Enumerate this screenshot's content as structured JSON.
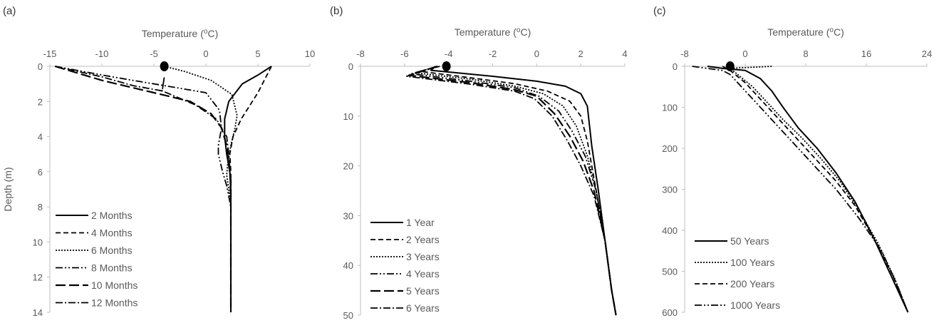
{
  "figure": {
    "panels": [
      "(a)",
      "(b)",
      "(c)"
    ]
  },
  "chart_data": [
    {
      "type": "line",
      "panel": "(a)",
      "xlabel": "Temperature (oC)",
      "xlabel_parts": [
        "Temperature (",
        "o",
        "C)"
      ],
      "ylabel": "Depth (m)",
      "xlim": [
        -15,
        10
      ],
      "ylim": [
        0,
        14
      ],
      "x_ticks": [
        -15,
        -10,
        -5,
        0,
        5,
        10
      ],
      "y_ticks": [
        0,
        2,
        4,
        6,
        8,
        10,
        12,
        14
      ],
      "y_inverted": true,
      "x_axis_position": "top",
      "grid": false,
      "legend_position": "bottom-left",
      "marker": {
        "x": -4,
        "y": 0
      },
      "series": [
        {
          "name": "2 Months",
          "style": "solid",
          "points": [
            [
              6.3,
              0
            ],
            [
              5,
              0.5
            ],
            [
              3.5,
              1
            ],
            [
              2.2,
              2
            ],
            [
              1.8,
              3
            ],
            [
              1.8,
              4
            ],
            [
              2,
              5
            ],
            [
              2.3,
              6
            ],
            [
              2.4,
              7
            ],
            [
              2.4,
              8
            ],
            [
              2.4,
              10
            ],
            [
              2.4,
              12
            ],
            [
              2.4,
              14
            ]
          ]
        },
        {
          "name": "4 Months",
          "style": "dashed",
          "points": [
            [
              6.3,
              0
            ],
            [
              5,
              1.5
            ],
            [
              3.4,
              3
            ],
            [
              2.6,
              4
            ],
            [
              2.3,
              5
            ],
            [
              2.4,
              6
            ],
            [
              2.4,
              7
            ],
            [
              2.4,
              8
            ],
            [
              2.4,
              10
            ],
            [
              2.4,
              12
            ],
            [
              2.4,
              14
            ]
          ]
        },
        {
          "name": "6 Months",
          "style": "dotted",
          "points": [
            [
              -4,
              0
            ],
            [
              -2,
              0.3
            ],
            [
              0.5,
              0.8
            ],
            [
              2.5,
              1.6
            ],
            [
              3,
              2.8
            ],
            [
              2.8,
              3.5
            ],
            [
              2.4,
              4.5
            ],
            [
              2.1,
              5.5
            ],
            [
              2,
              6.2
            ],
            [
              2.2,
              7
            ],
            [
              2.4,
              8
            ],
            [
              2.4,
              10
            ],
            [
              2.4,
              12
            ],
            [
              2.4,
              14
            ]
          ]
        },
        {
          "name": "8 Months",
          "style": "dashdotdot",
          "points": [
            [
              -14.5,
              0
            ],
            [
              -9,
              0.6
            ],
            [
              -4,
              1.1
            ],
            [
              0,
              1.5
            ],
            [
              1.3,
              2.5
            ],
            [
              1.5,
              3.5
            ],
            [
              1.2,
              4.5
            ],
            [
              1.2,
              5
            ],
            [
              1.6,
              6
            ],
            [
              2,
              6.8
            ],
            [
              2.4,
              8
            ],
            [
              2.4,
              10
            ],
            [
              2.4,
              12
            ],
            [
              2.4,
              14
            ]
          ]
        },
        {
          "name": "10 Months",
          "style": "longdash",
          "points": [
            [
              -14.5,
              0
            ],
            [
              -10,
              0.8
            ],
            [
              -5,
              1.5
            ],
            [
              -1.5,
              2
            ],
            [
              0.5,
              2.7
            ],
            [
              1.5,
              3.5
            ],
            [
              2,
              4.5
            ],
            [
              2.2,
              5.5
            ],
            [
              2.4,
              6.5
            ],
            [
              2.4,
              8
            ],
            [
              2.4,
              10
            ],
            [
              2.4,
              12
            ],
            [
              2.4,
              14
            ]
          ]
        },
        {
          "name": "12 Months",
          "style": "dashdot",
          "points": [
            [
              -14.5,
              0
            ],
            [
              -10,
              0.6
            ],
            [
              -7,
              1.1
            ],
            [
              -4.2,
              1.4
            ],
            [
              -4,
              0.6
            ],
            [
              -4.2,
              1.4
            ],
            [
              -1,
              2.2
            ],
            [
              1,
              3
            ],
            [
              2,
              4
            ],
            [
              2.2,
              5
            ],
            [
              2.3,
              6
            ],
            [
              2.4,
              8
            ],
            [
              2.4,
              10
            ],
            [
              2.4,
              12
            ],
            [
              2.4,
              14
            ]
          ]
        }
      ]
    },
    {
      "type": "line",
      "panel": "(b)",
      "xlabel": "Temperature (oC)",
      "xlabel_parts": [
        "Temperature (",
        "o",
        "C)"
      ],
      "xlim": [
        -8,
        4
      ],
      "ylim": [
        0,
        50
      ],
      "x_ticks": [
        -8,
        -6,
        -4,
        -2,
        0,
        2,
        4
      ],
      "y_ticks": [
        0,
        10,
        20,
        30,
        40,
        50
      ],
      "y_inverted": true,
      "x_axis_position": "top",
      "grid": false,
      "legend_position": "bottom-left",
      "marker": {
        "x": -4.1,
        "y": 0
      },
      "series": [
        {
          "name": "1 Year",
          "style": "solid",
          "points": [
            [
              -4.6,
              0
            ],
            [
              -4.8,
              0.8
            ],
            [
              -2,
              2
            ],
            [
              0,
              3
            ],
            [
              1.3,
              4
            ],
            [
              2,
              5.5
            ],
            [
              2.3,
              8
            ],
            [
              2.4,
              12
            ],
            [
              2.5,
              16
            ],
            [
              2.8,
              25
            ],
            [
              3.1,
              35
            ],
            [
              3.4,
              45
            ],
            [
              3.6,
              50
            ]
          ]
        },
        {
          "name": "2 Years",
          "style": "dashed",
          "points": [
            [
              -4.4,
              0
            ],
            [
              -5.3,
              1
            ],
            [
              -3,
              2.3
            ],
            [
              -1,
              3.5
            ],
            [
              0.5,
              5
            ],
            [
              1.5,
              7
            ],
            [
              2,
              10
            ],
            [
              2.3,
              15
            ],
            [
              2.7,
              25
            ],
            [
              3.1,
              35
            ],
            [
              3.4,
              45
            ],
            [
              3.6,
              50
            ]
          ]
        },
        {
          "name": "3 Years",
          "style": "dotted",
          "points": [
            [
              -4.5,
              0
            ],
            [
              -5.5,
              1.3
            ],
            [
              -3,
              2.6
            ],
            [
              -1,
              4
            ],
            [
              0.3,
              5.5
            ],
            [
              1.2,
              8
            ],
            [
              1.8,
              12
            ],
            [
              2.3,
              18
            ],
            [
              2.7,
              25
            ],
            [
              3.1,
              35
            ],
            [
              3.4,
              45
            ],
            [
              3.6,
              50
            ]
          ]
        },
        {
          "name": "4 Years",
          "style": "dashdotdot",
          "points": [
            [
              -4.5,
              0
            ],
            [
              -5.7,
              1.5
            ],
            [
              -3,
              3
            ],
            [
              -1,
              4.3
            ],
            [
              0.1,
              6
            ],
            [
              1,
              9
            ],
            [
              1.6,
              13
            ],
            [
              2.2,
              18
            ],
            [
              2.7,
              25
            ],
            [
              3.1,
              35
            ],
            [
              3.4,
              45
            ],
            [
              3.6,
              50
            ]
          ]
        },
        {
          "name": "5 Years",
          "style": "longdash",
          "points": [
            [
              -4.5,
              0
            ],
            [
              -5.8,
              1.8
            ],
            [
              -3,
              3.3
            ],
            [
              -1,
              4.7
            ],
            [
              0,
              6
            ],
            [
              0.8,
              9.5
            ],
            [
              1.5,
              14
            ],
            [
              2.1,
              19
            ],
            [
              2.6,
              25
            ],
            [
              3.1,
              35
            ],
            [
              3.4,
              45
            ],
            [
              3.6,
              50
            ]
          ]
        },
        {
          "name": "6 Years",
          "style": "dashdot",
          "points": [
            [
              -4.5,
              0
            ],
            [
              -5.9,
              2
            ],
            [
              -3,
              3.6
            ],
            [
              -1,
              5
            ],
            [
              -0.1,
              6.5
            ],
            [
              0.7,
              10
            ],
            [
              1.4,
              15
            ],
            [
              2,
              20
            ],
            [
              2.6,
              26
            ],
            [
              3.1,
              35
            ],
            [
              3.4,
              45
            ],
            [
              3.6,
              50
            ]
          ]
        }
      ]
    },
    {
      "type": "line",
      "panel": "(c)",
      "xlabel": "Temperature (oC)",
      "xlabel_parts": [
        "Temperature (",
        "o",
        "C)"
      ],
      "xlim": [
        -8,
        24
      ],
      "ylim": [
        0,
        600
      ],
      "x_ticks": [
        -8,
        0,
        8,
        16,
        24
      ],
      "y_ticks": [
        0,
        100,
        200,
        300,
        400,
        500,
        600
      ],
      "y_inverted": true,
      "x_axis_position": "top",
      "grid": false,
      "legend_position": "bottom-left",
      "marker": {
        "x": -2,
        "y": 0
      },
      "series": [
        {
          "name": "50 Years",
          "style": "solid",
          "points": [
            [
              -5,
              0
            ],
            [
              -3,
              5
            ],
            [
              0,
              10
            ],
            [
              2,
              30
            ],
            [
              3.5,
              60
            ],
            [
              5,
              100
            ],
            [
              7,
              150
            ],
            [
              9.5,
              200
            ],
            [
              12,
              260
            ],
            [
              14.5,
              330
            ],
            [
              17,
              420
            ],
            [
              19.5,
              520
            ],
            [
              21.5,
              600
            ]
          ]
        },
        {
          "name": "100 Years",
          "style": "dotted",
          "points": [
            [
              3.5,
              0
            ],
            [
              -2,
              5
            ],
            [
              -1,
              20
            ],
            [
              1,
              50
            ],
            [
              3,
              90
            ],
            [
              5,
              130
            ],
            [
              7.5,
              175
            ],
            [
              10,
              225
            ],
            [
              12.5,
              280
            ],
            [
              15,
              350
            ],
            [
              17.5,
              430
            ],
            [
              19.8,
              520
            ],
            [
              21.5,
              600
            ]
          ]
        },
        {
          "name": "200 Years",
          "style": "dashed",
          "points": [
            [
              -3,
              0
            ],
            [
              -2,
              10
            ],
            [
              0,
              40
            ],
            [
              2,
              80
            ],
            [
              4.5,
              130
            ],
            [
              7,
              180
            ],
            [
              9.5,
              230
            ],
            [
              12,
              280
            ],
            [
              14.5,
              340
            ],
            [
              17,
              420
            ],
            [
              19.5,
              510
            ],
            [
              21.5,
              600
            ]
          ]
        },
        {
          "name": "1000 Years",
          "style": "dashdotdot",
          "points": [
            [
              -7,
              0
            ],
            [
              -3,
              10
            ],
            [
              -2,
              20
            ],
            [
              0,
              60
            ],
            [
              3,
              120
            ],
            [
              6,
              180
            ],
            [
              9,
              240
            ],
            [
              12,
              300
            ],
            [
              15,
              370
            ],
            [
              18,
              450
            ],
            [
              20,
              530
            ],
            [
              21.5,
              600
            ]
          ]
        }
      ]
    }
  ]
}
